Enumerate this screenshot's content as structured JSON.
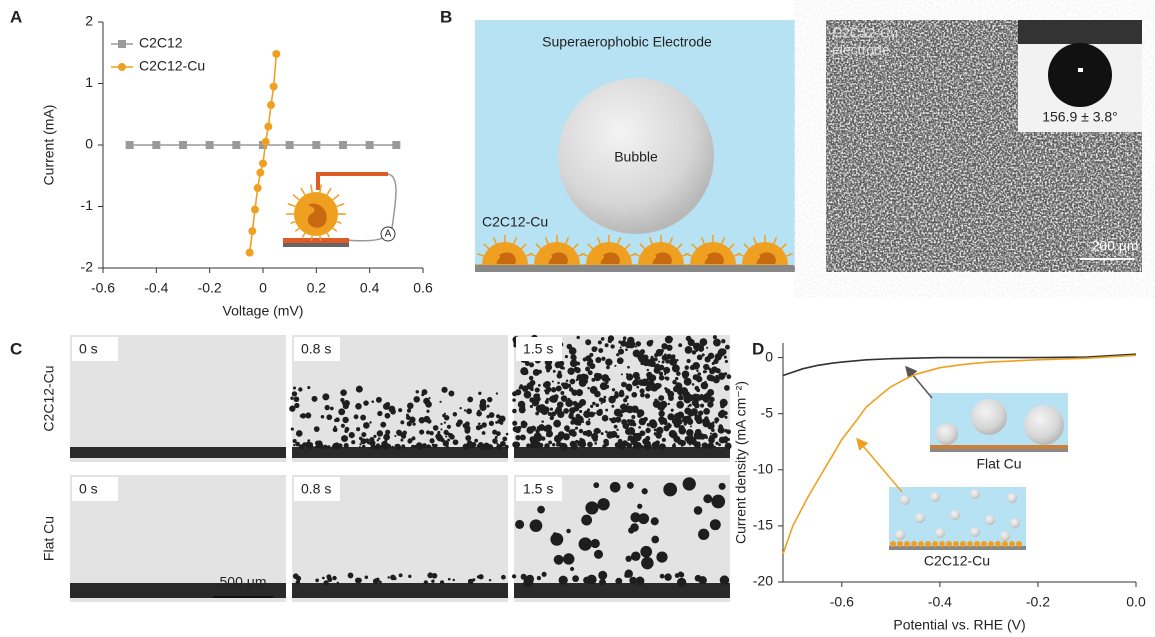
{
  "chart_data": [
    {
      "type": "line",
      "panel": "A",
      "xlabel": "Voltage (mV)",
      "ylabel": "Current (mA)",
      "inset_label": "A",
      "xlim": [
        -0.6,
        0.6
      ],
      "ylim": [
        -2,
        2
      ],
      "xticks": [
        -0.6,
        -0.4,
        -0.2,
        0,
        0.2,
        0.4,
        0.6
      ],
      "yticks": [
        -2,
        -1,
        0,
        1,
        2
      ],
      "legend": "upper left",
      "series": [
        {
          "name": "C2C12",
          "color": "#9a9a9a",
          "marker": "square",
          "x": [
            -0.5,
            -0.4,
            -0.3,
            -0.2,
            -0.1,
            0,
            0.1,
            0.2,
            0.3,
            0.4,
            0.5
          ],
          "values": [
            0,
            0,
            0,
            0,
            0,
            0,
            0,
            0,
            0,
            0,
            0
          ]
        },
        {
          "name": "C2C12-Cu",
          "color": "#f0a020",
          "marker": "circle",
          "x": [
            -0.05,
            -0.04,
            -0.03,
            -0.02,
            -0.01,
            0,
            0.01,
            0.02,
            0.03,
            0.04,
            0.05
          ],
          "values": [
            -1.75,
            -1.4,
            -1.05,
            -0.7,
            -0.45,
            -0.3,
            0.05,
            0.3,
            0.65,
            0.95,
            1.48
          ]
        }
      ]
    },
    {
      "type": "line",
      "panel": "D",
      "xlabel": "Potential vs. RHE (V)",
      "ylabel": "Current density (mA cm⁻²)",
      "xlim": [
        -0.72,
        0
      ],
      "ylim": [
        -20,
        1.3
      ],
      "xticks": [
        -0.6,
        -0.4,
        -0.2,
        {
          "value": 0,
          "label": "0.0"
        }
      ],
      "yticks": [
        -20,
        -15,
        -10,
        -5,
        0
      ],
      "series": [
        {
          "name": "Flat Cu",
          "color": "#333333",
          "x": [
            -0.72,
            -0.68,
            -0.65,
            -0.62,
            -0.6,
            -0.55,
            -0.5,
            -0.4,
            -0.3,
            -0.2,
            -0.1,
            0
          ],
          "values": [
            -1.6,
            -1.0,
            -0.7,
            -0.5,
            -0.4,
            -0.2,
            -0.1,
            0,
            0,
            0,
            0.05,
            0.3
          ]
        },
        {
          "name": "C2C12-Cu",
          "color": "#f0a020",
          "x": [
            -0.72,
            -0.7,
            -0.67,
            -0.65,
            -0.62,
            -0.6,
            -0.57,
            -0.55,
            -0.52,
            -0.5,
            -0.47,
            -0.45,
            -0.4,
            -0.35,
            -0.3,
            -0.2,
            -0.1,
            0
          ],
          "values": [
            -17.5,
            -15,
            -12.5,
            -11,
            -8.8,
            -7.3,
            -5.6,
            -4.4,
            -3.3,
            -2.6,
            -1.9,
            -1.5,
            -0.9,
            -0.6,
            -0.4,
            -0.2,
            -0.05,
            0.2
          ]
        }
      ]
    }
  ],
  "panel_b": {
    "panel": "B",
    "title": "Superaerophobic Electrode",
    "bubble": "Bubble",
    "coating": "C2C12-Cu",
    "sem_label": [
      "C2C12-Cu",
      "electrode"
    ],
    "contact_angle": "156.9 ± 3.8°",
    "scale_bar": "200 μm"
  },
  "panel_c": {
    "panel": "C",
    "rows": [
      {
        "label": "C2C12-Cu",
        "times": [
          "0 s",
          "0.8 s",
          "1.5 s"
        ]
      },
      {
        "label": "Flat Cu",
        "times": [
          "0 s",
          "0.8 s",
          "1.5 s"
        ]
      }
    ],
    "scale_bar": "500 μm"
  }
}
